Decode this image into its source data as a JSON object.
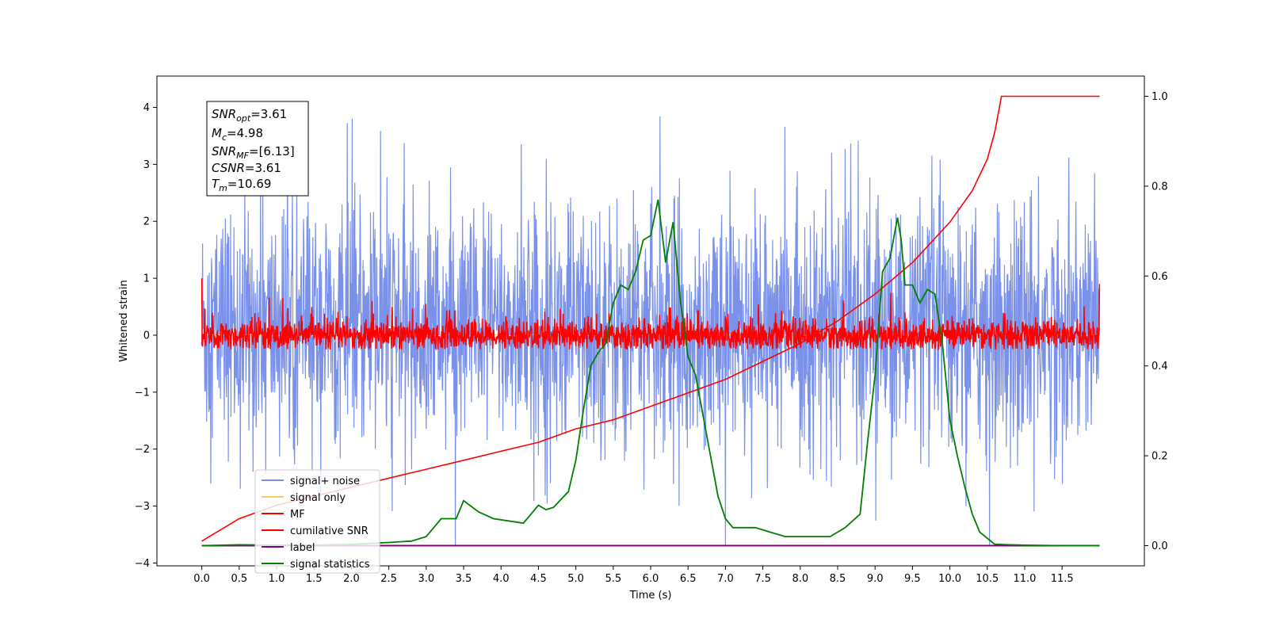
{
  "chart_data": {
    "type": "line",
    "title": "",
    "xlabel": "Time (s)",
    "ylabel": "Whitened strain",
    "xlim": [
      -0.6,
      12.6
    ],
    "ylim": [
      -4.05,
      4.55
    ],
    "y2lim": [
      -0.045,
      1.045
    ],
    "xticks": [
      "0.0",
      "0.5",
      "1.0",
      "1.5",
      "2.0",
      "2.5",
      "3.0",
      "3.5",
      "4.0",
      "4.5",
      "5.0",
      "5.5",
      "6.0",
      "6.5",
      "7.0",
      "7.5",
      "8.0",
      "8.5",
      "9.0",
      "9.5",
      "10.0",
      "10.5",
      "11.0",
      "11.5"
    ],
    "yticks": [
      "4",
      "3",
      "2",
      "1",
      "0",
      "−1",
      "−2",
      "−3",
      "−4"
    ],
    "y2ticks": [
      "1.0",
      "0.8",
      "0.6",
      "0.4",
      "0.2",
      "0.0"
    ],
    "grid": false,
    "legend_position": "lower-left",
    "legend": [
      "signal+ noise",
      "signal only",
      "MF",
      "cumilative SNR",
      "label",
      "signal statistics"
    ],
    "colors": {
      "signal_noise": "#7991e8",
      "signal_only": "#ffc966",
      "mf": "#ff0000",
      "cumulative_snr": "#ff0000",
      "label": "#800080",
      "signal_statistics": "#008000"
    },
    "annotation": {
      "snr_opt": "3.61",
      "mc": "4.98",
      "snr_mf": "[6.13]",
      "csnr": "3.61",
      "tm": "10.69"
    },
    "signal_noise_summary": {
      "x_range": [
        0.0,
        12.0
      ],
      "typical_low": -2.4,
      "typical_high": 2.6,
      "min": -3.7,
      "max": 4.2
    },
    "mf_summary": {
      "x_range": [
        0.0,
        12.0
      ],
      "typical_low": -0.25,
      "typical_high": 0.4,
      "start_value": 1.0
    },
    "cumulative_snr": {
      "axis": "right",
      "x": [
        0.0,
        0.5,
        1.0,
        1.5,
        2.0,
        2.5,
        3.0,
        3.5,
        4.0,
        4.5,
        5.0,
        5.5,
        6.0,
        6.5,
        7.0,
        7.5,
        8.0,
        8.5,
        9.0,
        9.5,
        10.0,
        10.3,
        10.5,
        10.6,
        10.69,
        11.0,
        11.5,
        12.0
      ],
      "y": [
        0.01,
        0.06,
        0.09,
        0.11,
        0.13,
        0.15,
        0.17,
        0.19,
        0.21,
        0.23,
        0.26,
        0.28,
        0.31,
        0.34,
        0.37,
        0.41,
        0.45,
        0.5,
        0.56,
        0.63,
        0.72,
        0.79,
        0.86,
        0.92,
        1.0,
        1.0,
        1.0,
        1.0
      ]
    },
    "signal_statistics": {
      "axis": "right",
      "x": [
        0.0,
        0.5,
        1.0,
        1.5,
        2.0,
        2.5,
        2.8,
        3.0,
        3.2,
        3.4,
        3.5,
        3.7,
        3.9,
        4.1,
        4.3,
        4.5,
        4.6,
        4.7,
        4.9,
        5.0,
        5.1,
        5.2,
        5.3,
        5.4,
        5.5,
        5.6,
        5.7,
        5.8,
        5.9,
        6.0,
        6.1,
        6.2,
        6.3,
        6.4,
        6.5,
        6.6,
        6.7,
        6.8,
        6.9,
        7.0,
        7.1,
        7.2,
        7.4,
        7.6,
        7.8,
        8.0,
        8.2,
        8.4,
        8.6,
        8.8,
        8.9,
        9.0,
        9.1,
        9.2,
        9.3,
        9.35,
        9.4,
        9.5,
        9.6,
        9.7,
        9.8,
        9.9,
        10.0,
        10.1,
        10.2,
        10.3,
        10.4,
        10.6,
        11.0,
        11.5,
        12.0
      ],
      "y": [
        0.0,
        0.002,
        0.001,
        0.001,
        0.003,
        0.007,
        0.01,
        0.02,
        0.06,
        0.06,
        0.1,
        0.075,
        0.06,
        0.055,
        0.05,
        0.09,
        0.08,
        0.085,
        0.12,
        0.19,
        0.3,
        0.4,
        0.43,
        0.45,
        0.54,
        0.58,
        0.57,
        0.61,
        0.68,
        0.69,
        0.77,
        0.63,
        0.72,
        0.54,
        0.42,
        0.38,
        0.29,
        0.2,
        0.11,
        0.06,
        0.04,
        0.04,
        0.04,
        0.03,
        0.02,
        0.02,
        0.02,
        0.02,
        0.04,
        0.07,
        0.23,
        0.38,
        0.61,
        0.64,
        0.73,
        0.68,
        0.58,
        0.58,
        0.54,
        0.57,
        0.56,
        0.45,
        0.28,
        0.2,
        0.13,
        0.07,
        0.03,
        0.003,
        0.001,
        0.0,
        0.0
      ]
    },
    "label_series": {
      "axis": "right",
      "x": [
        0.0,
        12.0
      ],
      "y": [
        0.0,
        0.0
      ]
    }
  }
}
